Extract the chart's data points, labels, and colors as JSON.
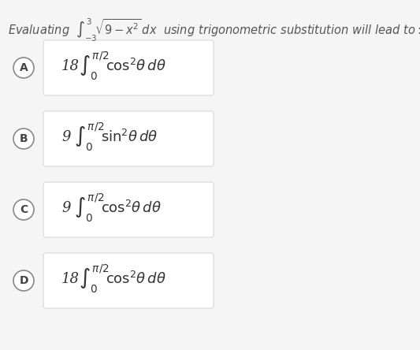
{
  "bg_color": "#f5f5f5",
  "white_color": "#ffffff",
  "text_color": "#555555",
  "header_text_parts": [
    "Evaluating ",
    "$\\int_{-3}^{3} \\sqrt{9-x^2}\\, dx$",
    " using trigonometric substitution will lead to:"
  ],
  "options": [
    {
      "label": "A",
      "coeff": "18",
      "trig": "$\\cos^2\\!\\theta\\, d\\theta$"
    },
    {
      "label": "B",
      "coeff": "9",
      "trig": "$\\sin^2\\!\\theta\\, d\\theta$"
    },
    {
      "label": "C",
      "coeff": "9",
      "trig": "$\\cos^2\\!\\theta\\, d\\theta$"
    },
    {
      "label": "D",
      "coeff": "18",
      "trig": "$\\cos^2\\!\\theta\\, d\\theta$"
    }
  ],
  "circle_facecolor": "#ffffff",
  "circle_edgecolor": "#888888",
  "box_facecolor": "#ffffff",
  "box_edgecolor": "#cccccc",
  "figsize": [
    5.33,
    4.44
  ],
  "dpi": 100
}
